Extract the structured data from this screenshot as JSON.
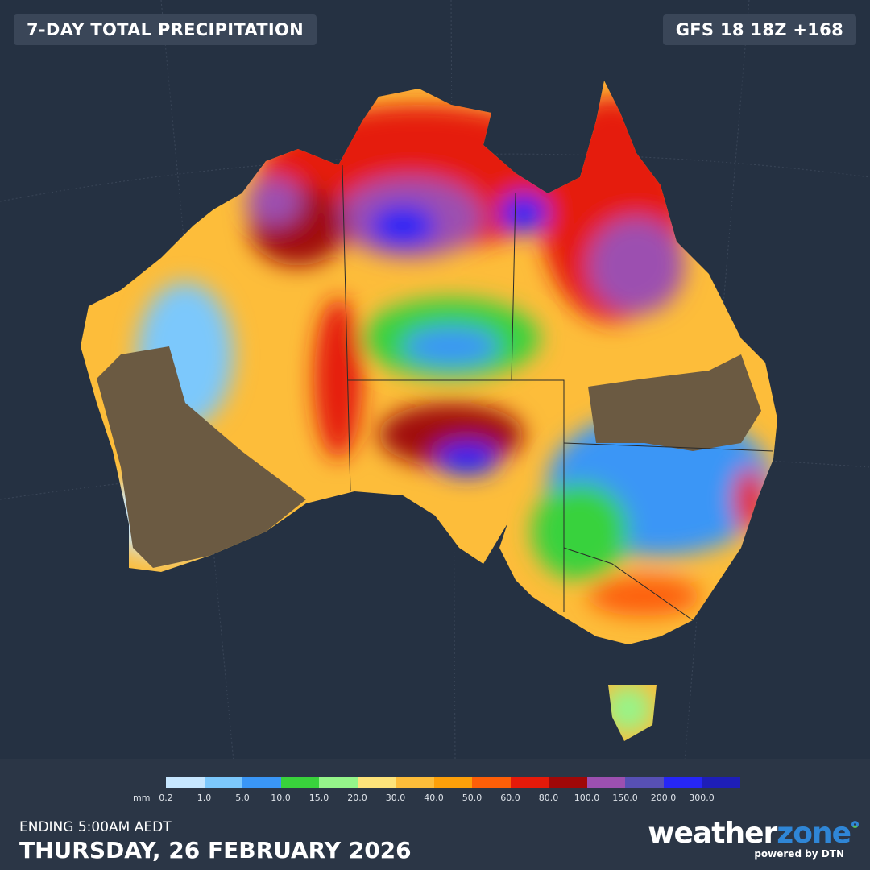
{
  "header": {
    "title": "7-DAY TOTAL PRECIPITATION",
    "model": "GFS 18 18Z +168"
  },
  "legend": {
    "unit": "mm",
    "labels": [
      "0.2",
      "1.0",
      "5.0",
      "10.0",
      "15.0",
      "20.0",
      "30.0",
      "40.0",
      "50.0",
      "60.0",
      "80.0",
      "100.0",
      "150.0",
      "200.0",
      "300.0"
    ],
    "colors": [
      "#c6e6ff",
      "#7cc8fc",
      "#3a96f6",
      "#39d23c",
      "#95f58a",
      "#fde37a",
      "#fdbd3a",
      "#fda00a",
      "#fd5f08",
      "#e51a0a",
      "#a00808",
      "#9c50b0",
      "#5750b4",
      "#2626f6",
      "#1e1eb8"
    ]
  },
  "footer": {
    "ending": "ENDING 5:00AM AEDT",
    "date": "THURSDAY, 26 FEBRUARY 2026"
  },
  "logo": {
    "word1": "weather",
    "word2": "zone",
    "tagline": "powered by DTN"
  },
  "map": {
    "region": "Australia",
    "background": "#253142",
    "dry_land": "#6b5a42"
  }
}
